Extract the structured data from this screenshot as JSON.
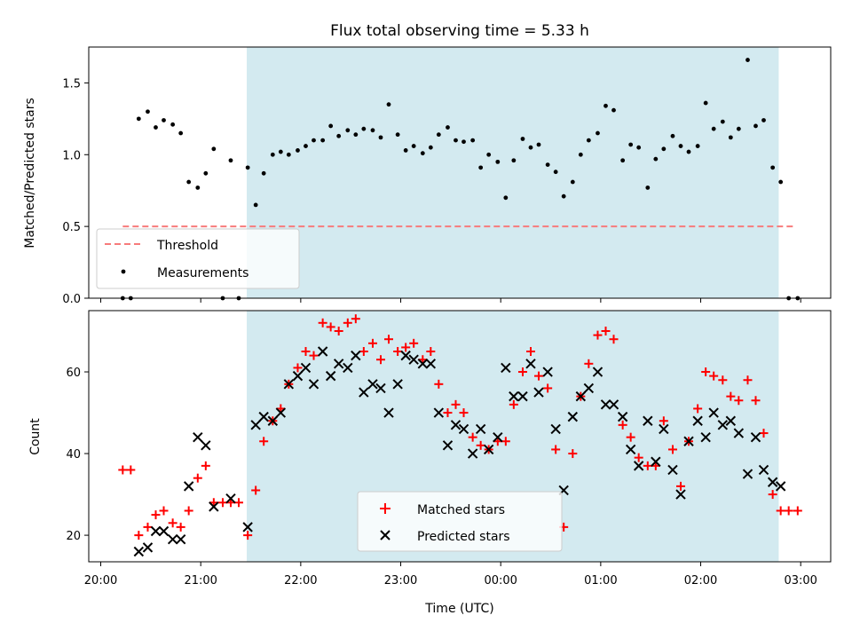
{
  "chart_data": [
    {
      "type": "scatter",
      "title": "Flux total observing time = 5.33 h",
      "xlabel": "",
      "ylabel": "Matched/Predicted stars",
      "ylim": [
        0,
        1.75
      ],
      "yticks": [
        "0.0",
        "0.5",
        "1.0",
        "1.5"
      ],
      "ytick_values": [
        0,
        0.5,
        1.0,
        1.5
      ],
      "xlim": [
        -0.12,
        7.3
      ],
      "shaded_region": [
        1.46,
        6.78
      ],
      "shade_color": "#d3eaf0",
      "legend_position": "lower left",
      "threshold": {
        "name": "Threshold",
        "value": 0.5,
        "x_range": [
          0.22,
          6.95
        ],
        "color": "#f77b7b",
        "style": "dashed"
      },
      "series": [
        {
          "name": "Measurements",
          "color": "#000000",
          "marker": "dot",
          "x": [
            0.22,
            0.3,
            0.38,
            0.47,
            0.55,
            0.63,
            0.72,
            0.8,
            0.88,
            0.97,
            1.05,
            1.13,
            1.22,
            1.3,
            1.38,
            1.47,
            1.55,
            1.63,
            1.72,
            1.8,
            1.88,
            1.97,
            2.05,
            2.13,
            2.22,
            2.3,
            2.38,
            2.47,
            2.55,
            2.63,
            2.72,
            2.8,
            2.88,
            2.97,
            3.05,
            3.13,
            3.22,
            3.3,
            3.38,
            3.47,
            3.55,
            3.63,
            3.72,
            3.8,
            3.88,
            3.97,
            4.05,
            4.13,
            4.22,
            4.3,
            4.38,
            4.47,
            4.55,
            4.63,
            4.72,
            4.8,
            4.88,
            4.97,
            5.05,
            5.13,
            5.22,
            5.3,
            5.38,
            5.47,
            5.55,
            5.63,
            5.72,
            5.8,
            5.88,
            5.97,
            6.05,
            6.13,
            6.22,
            6.3,
            6.38,
            6.47,
            6.55,
            6.63,
            6.72,
            6.8,
            6.88,
            6.97
          ],
          "y": [
            0.0,
            0.0,
            1.25,
            1.3,
            1.19,
            1.24,
            1.21,
            1.15,
            0.81,
            0.77,
            0.87,
            1.04,
            0.0,
            0.96,
            0.0,
            0.91,
            0.65,
            0.87,
            1.0,
            1.02,
            1.0,
            1.03,
            1.06,
            1.1,
            1.1,
            1.2,
            1.13,
            1.17,
            1.14,
            1.18,
            1.17,
            1.12,
            1.35,
            1.14,
            1.03,
            1.06,
            1.01,
            1.05,
            1.14,
            1.19,
            1.1,
            1.09,
            1.1,
            0.91,
            1.0,
            0.95,
            0.7,
            0.96,
            1.11,
            1.05,
            1.07,
            0.93,
            0.88,
            0.71,
            0.81,
            1.0,
            1.1,
            1.15,
            1.34,
            1.31,
            0.96,
            1.07,
            1.05,
            0.77,
            0.97,
            1.04,
            1.13,
            1.06,
            1.02,
            1.06,
            1.36,
            1.18,
            1.23,
            1.12,
            1.18,
            1.66,
            1.2,
            1.24,
            0.91,
            0.81,
            0.0,
            0.0
          ]
        }
      ]
    },
    {
      "type": "scatter",
      "title": "",
      "xlabel": "Time (UTC)",
      "ylabel": "Count",
      "ylim": [
        13.5,
        75
      ],
      "yticks": [
        "20",
        "40",
        "60"
      ],
      "ytick_values": [
        20,
        40,
        60
      ],
      "xlim": [
        -0.12,
        7.3
      ],
      "xticks": [
        "20:00",
        "21:00",
        "22:00",
        "23:00",
        "00:00",
        "01:00",
        "02:00",
        "03:00"
      ],
      "xtick_values": [
        0,
        1,
        2,
        3,
        4,
        5,
        6,
        7
      ],
      "shaded_region": [
        1.46,
        6.78
      ],
      "shade_color": "#d3eaf0",
      "legend_position": "lower center",
      "series": [
        {
          "name": "Matched stars",
          "color": "#ff0000",
          "marker": "plus",
          "x": [
            0.22,
            0.3,
            0.38,
            0.47,
            0.55,
            0.63,
            0.72,
            0.8,
            0.88,
            0.97,
            1.05,
            1.13,
            1.22,
            1.3,
            1.38,
            1.47,
            1.55,
            1.63,
            1.72,
            1.8,
            1.88,
            1.97,
            2.05,
            2.13,
            2.22,
            2.3,
            2.38,
            2.47,
            2.55,
            2.63,
            2.72,
            2.8,
            2.88,
            2.97,
            3.05,
            3.13,
            3.22,
            3.3,
            3.38,
            3.47,
            3.55,
            3.63,
            3.72,
            3.8,
            3.88,
            3.97,
            4.05,
            4.13,
            4.22,
            4.3,
            4.38,
            4.47,
            4.55,
            4.63,
            4.72,
            4.8,
            4.88,
            4.97,
            5.05,
            5.13,
            5.22,
            5.3,
            5.38,
            5.47,
            5.55,
            5.63,
            5.72,
            5.8,
            5.88,
            5.97,
            6.05,
            6.13,
            6.22,
            6.3,
            6.38,
            6.47,
            6.55,
            6.63,
            6.72,
            6.8,
            6.88,
            6.97
          ],
          "y": [
            36,
            36,
            20,
            22,
            25,
            26,
            23,
            22,
            26,
            34,
            37,
            28,
            28,
            28,
            28,
            20,
            31,
            43,
            48,
            51,
            57,
            61,
            65,
            64,
            72,
            71,
            70,
            72,
            73,
            65,
            67,
            63,
            68,
            65,
            66,
            67,
            63,
            65,
            57,
            50,
            52,
            50,
            44,
            42,
            41,
            43,
            43,
            52,
            60,
            65,
            59,
            56,
            41,
            22,
            40,
            54,
            62,
            69,
            70,
            68,
            47,
            44,
            39,
            37,
            37,
            48,
            41,
            32,
            43,
            51,
            60,
            59,
            58,
            54,
            53,
            58,
            53,
            45,
            30,
            26,
            26,
            26
          ]
        },
        {
          "name": "Predicted stars",
          "color": "#000000",
          "marker": "x",
          "x": [
            0.38,
            0.47,
            0.55,
            0.63,
            0.72,
            0.8,
            0.88,
            0.97,
            1.05,
            1.13,
            1.3,
            1.47,
            1.55,
            1.63,
            1.72,
            1.8,
            1.88,
            1.97,
            2.05,
            2.13,
            2.22,
            2.3,
            2.38,
            2.47,
            2.55,
            2.63,
            2.72,
            2.8,
            2.88,
            2.97,
            3.05,
            3.13,
            3.22,
            3.3,
            3.38,
            3.47,
            3.55,
            3.63,
            3.72,
            3.8,
            3.88,
            3.97,
            4.05,
            4.13,
            4.22,
            4.3,
            4.38,
            4.47,
            4.55,
            4.63,
            4.72,
            4.8,
            4.88,
            4.97,
            5.05,
            5.13,
            5.22,
            5.3,
            5.38,
            5.47,
            5.55,
            5.63,
            5.72,
            5.8,
            5.88,
            5.97,
            6.05,
            6.13,
            6.22,
            6.3,
            6.38,
            6.47,
            6.55,
            6.63,
            6.72,
            6.8
          ],
          "y": [
            16,
            17,
            21,
            21,
            19,
            19,
            32,
            44,
            42,
            27,
            29,
            22,
            47,
            49,
            48,
            50,
            57,
            59,
            61,
            57,
            65,
            59,
            62,
            61,
            64,
            55,
            57,
            56,
            50,
            57,
            64,
            63,
            62,
            62,
            50,
            42,
            47,
            46,
            40,
            46,
            41,
            44,
            61,
            54,
            54,
            62,
            55,
            60,
            46,
            31,
            49,
            54,
            56,
            60,
            52,
            52,
            49,
            41,
            37,
            48,
            38,
            46,
            36,
            30,
            43,
            48,
            44,
            50,
            47,
            48,
            45,
            35,
            44,
            36,
            33,
            32
          ]
        }
      ]
    }
  ]
}
